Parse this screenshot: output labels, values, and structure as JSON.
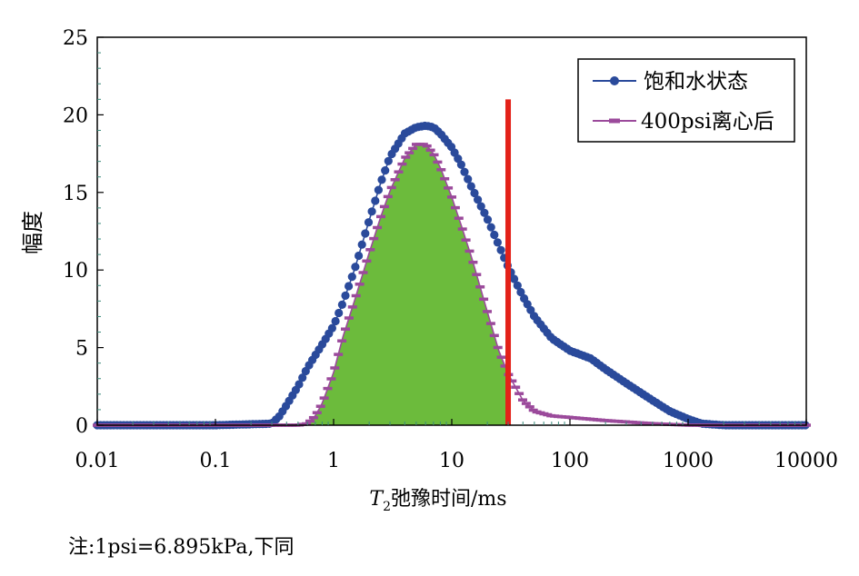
{
  "chart_data": {
    "type": "line",
    "xlabel": "T2弛豫时间/ms",
    "xlabel_main": "T",
    "xlabel_sub": "2",
    "xlabel_rest": "弛豫时间/ms",
    "ylabel": "幅度",
    "xscale": "log",
    "xlim": [
      0.01,
      10000
    ],
    "ylim": [
      0,
      25
    ],
    "x_ticks": [
      "0.01",
      "0.1",
      "1",
      "10",
      "100",
      "1000",
      "10000"
    ],
    "x_tick_values": [
      0.01,
      0.1,
      1,
      10,
      100,
      1000,
      10000
    ],
    "y_ticks": [
      "0",
      "5",
      "10",
      "15",
      "20",
      "25"
    ],
    "y_tick_values": [
      0,
      5,
      10,
      15,
      20,
      25
    ],
    "grid": false,
    "legend_position": "top-right",
    "cutoff_line": {
      "x": 30,
      "y_top": 21,
      "color": "#e32119"
    },
    "shaded_area": {
      "series_index": 1,
      "x_max": 30,
      "color": "#6cbb3c"
    },
    "series": [
      {
        "name": "饱和水状态",
        "color": "#2a4a9b",
        "marker": "circle",
        "x": [
          0.01,
          0.1,
          0.3,
          0.35,
          0.4,
          0.5,
          0.6,
          0.8,
          1,
          1.2,
          1.5,
          2,
          2.5,
          3,
          4,
          5,
          6,
          7,
          8,
          10,
          12,
          15,
          20,
          25,
          30,
          40,
          50,
          70,
          100,
          150,
          200,
          300,
          500,
          700,
          1000,
          1300,
          2000,
          5000,
          10000
        ],
        "y": [
          0,
          0,
          0.1,
          0.6,
          1.3,
          2.5,
          3.7,
          5.2,
          6.4,
          7.9,
          10.0,
          13.2,
          15.6,
          17.3,
          18.8,
          19.2,
          19.3,
          19.2,
          18.8,
          17.9,
          16.8,
          15.2,
          13.3,
          11.6,
          10.2,
          8.3,
          7.0,
          5.6,
          4.8,
          4.3,
          3.6,
          2.7,
          1.6,
          0.9,
          0.4,
          0.1,
          0,
          0,
          0
        ]
      },
      {
        "name": "400psi离心后",
        "color": "#9b4a9b",
        "marker": "dash",
        "x": [
          0.01,
          0.1,
          0.5,
          0.6,
          0.7,
          0.8,
          1,
          1.2,
          1.5,
          2,
          2.5,
          3,
          4,
          5,
          6,
          7,
          8,
          10,
          12,
          15,
          20,
          25,
          30,
          40,
          50,
          70,
          100,
          200,
          500,
          1000,
          10000
        ],
        "y": [
          0,
          0,
          0,
          0.1,
          0.6,
          1.4,
          3.4,
          5.7,
          8.0,
          11.1,
          13.4,
          15.1,
          17.2,
          18.1,
          18.1,
          17.5,
          16.6,
          14.7,
          12.9,
          10.6,
          7.3,
          4.8,
          3.3,
          1.6,
          0.9,
          0.6,
          0.5,
          0.3,
          0.1,
          0,
          0
        ]
      }
    ],
    "note": "注:1psi=6.895kPa,下同"
  }
}
